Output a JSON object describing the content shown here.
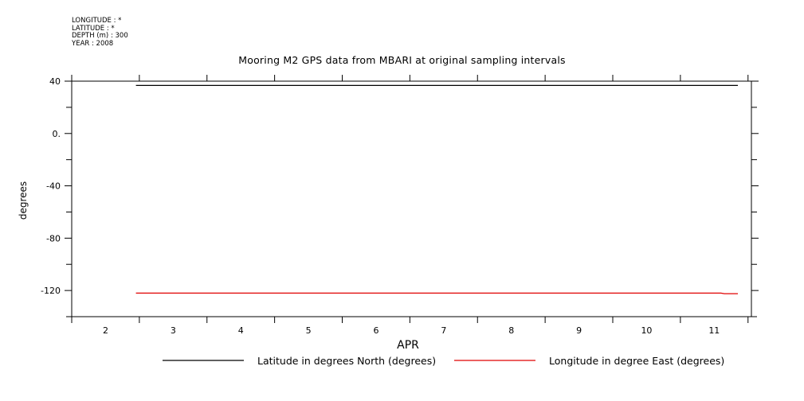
{
  "header": {
    "meta_lines": [
      "LONGITUDE : *",
      "LATITUDE : *",
      "DEPTH (m) : 300",
      "YEAR : 2008"
    ]
  },
  "chart_data": {
    "type": "line",
    "title": "Mooring M2 GPS data from MBARI at original sampling intervals",
    "xlabel": "APR",
    "ylabel": "degrees",
    "xlim": [
      1.5,
      11.55
    ],
    "ylim": [
      -140,
      40
    ],
    "x_ticks": [
      2,
      3,
      4,
      5,
      6,
      7,
      8,
      9,
      10,
      11
    ],
    "x_tick_labels": [
      "2",
      "3",
      "4",
      "5",
      "6",
      "7",
      "8",
      "9",
      "10",
      "11"
    ],
    "y_ticks": [
      40,
      0,
      -40,
      -80,
      -120
    ],
    "y_tick_labels": [
      "40",
      "0.",
      "-40",
      "-80",
      "-120"
    ],
    "series": [
      {
        "name": "Latitude in degrees North (degrees)",
        "color": "#000000",
        "points": [
          [
            2.45,
            36.7
          ],
          [
            11.35,
            36.7
          ]
        ]
      },
      {
        "name": "Longitude in degree East (degrees)",
        "color": "#e00000",
        "points": [
          [
            2.45,
            -122.0
          ],
          [
            11.1,
            -122.0
          ],
          [
            11.15,
            -122.4
          ],
          [
            11.35,
            -122.4
          ]
        ]
      }
    ],
    "legend_position": "bottom",
    "grid": false
  }
}
